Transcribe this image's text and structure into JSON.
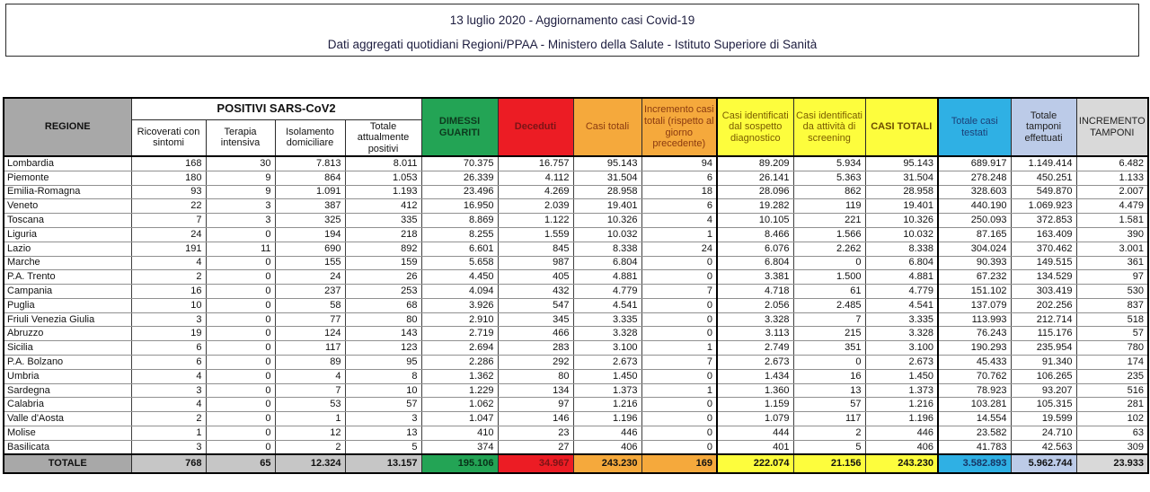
{
  "title": {
    "line1": "13 luglio 2020 - Aggiornamento casi Covid-19",
    "line2": "Dati aggregati quotidiani Regioni/PPAA - Ministero della Salute - Istituto Superiore di Sanità"
  },
  "table": {
    "header": {
      "group": "POSITIVI SARS-CoV2",
      "col_labels": [
        "REGIONE",
        "Ricoverati con sintomi",
        "Terapia intensiva",
        "Isolamento domiciliare",
        "Totale attualmente positivi",
        "DIMESSI GUARITI",
        "Deceduti",
        "Casi totali",
        "Incremento casi totali (rispetto al giorno precedente)",
        "Casi identificati dal sospetto diagnostico",
        "Casi identificati da attività di screening",
        "CASI TOTALI",
        "Totale casi testati",
        "Totale tamponi effettuati",
        "INCREMENTO TAMPONI"
      ]
    },
    "rows": [
      [
        "Lombardia",
        "168",
        "30",
        "7.813",
        "8.011",
        "70.375",
        "16.757",
        "95.143",
        "94",
        "89.209",
        "5.934",
        "95.143",
        "689.917",
        "1.149.414",
        "6.482"
      ],
      [
        "Piemonte",
        "180",
        "9",
        "864",
        "1.053",
        "26.339",
        "4.112",
        "31.504",
        "6",
        "26.141",
        "5.363",
        "31.504",
        "278.248",
        "450.251",
        "1.133"
      ],
      [
        "Emilia-Romagna",
        "93",
        "9",
        "1.091",
        "1.193",
        "23.496",
        "4.269",
        "28.958",
        "18",
        "28.096",
        "862",
        "28.958",
        "328.603",
        "549.870",
        "2.007"
      ],
      [
        "Veneto",
        "22",
        "3",
        "387",
        "412",
        "16.950",
        "2.039",
        "19.401",
        "6",
        "19.282",
        "119",
        "19.401",
        "440.190",
        "1.069.923",
        "4.479"
      ],
      [
        "Toscana",
        "7",
        "3",
        "325",
        "335",
        "8.869",
        "1.122",
        "10.326",
        "4",
        "10.105",
        "221",
        "10.326",
        "250.093",
        "372.853",
        "1.581"
      ],
      [
        "Liguria",
        "24",
        "0",
        "194",
        "218",
        "8.255",
        "1.559",
        "10.032",
        "1",
        "8.466",
        "1.566",
        "10.032",
        "87.165",
        "163.409",
        "390"
      ],
      [
        "Lazio",
        "191",
        "11",
        "690",
        "892",
        "6.601",
        "845",
        "8.338",
        "24",
        "6.076",
        "2.262",
        "8.338",
        "304.024",
        "370.462",
        "3.001"
      ],
      [
        "Marche",
        "4",
        "0",
        "155",
        "159",
        "5.658",
        "987",
        "6.804",
        "0",
        "6.804",
        "0",
        "6.804",
        "90.393",
        "149.515",
        "361"
      ],
      [
        "P.A. Trento",
        "2",
        "0",
        "24",
        "26",
        "4.450",
        "405",
        "4.881",
        "0",
        "3.381",
        "1.500",
        "4.881",
        "67.232",
        "134.529",
        "97"
      ],
      [
        "Campania",
        "16",
        "0",
        "237",
        "253",
        "4.094",
        "432",
        "4.779",
        "7",
        "4.718",
        "61",
        "4.779",
        "151.102",
        "303.419",
        "530"
      ],
      [
        "Puglia",
        "10",
        "0",
        "58",
        "68",
        "3.926",
        "547",
        "4.541",
        "0",
        "2.056",
        "2.485",
        "4.541",
        "137.079",
        "202.256",
        "837"
      ],
      [
        "Friuli Venezia Giulia",
        "3",
        "0",
        "77",
        "80",
        "2.910",
        "345",
        "3.335",
        "0",
        "3.328",
        "7",
        "3.335",
        "113.993",
        "212.714",
        "518"
      ],
      [
        "Abruzzo",
        "19",
        "0",
        "124",
        "143",
        "2.719",
        "466",
        "3.328",
        "0",
        "3.113",
        "215",
        "3.328",
        "76.243",
        "115.176",
        "57"
      ],
      [
        "Sicilia",
        "6",
        "0",
        "117",
        "123",
        "2.694",
        "283",
        "3.100",
        "1",
        "2.749",
        "351",
        "3.100",
        "190.293",
        "235.954",
        "780"
      ],
      [
        "P.A. Bolzano",
        "6",
        "0",
        "89",
        "95",
        "2.286",
        "292",
        "2.673",
        "7",
        "2.673",
        "0",
        "2.673",
        "45.433",
        "91.340",
        "174"
      ],
      [
        "Umbria",
        "4",
        "0",
        "4",
        "8",
        "1.362",
        "80",
        "1.450",
        "0",
        "1.434",
        "16",
        "1.450",
        "70.762",
        "106.265",
        "235"
      ],
      [
        "Sardegna",
        "3",
        "0",
        "7",
        "10",
        "1.229",
        "134",
        "1.373",
        "1",
        "1.360",
        "13",
        "1.373",
        "78.923",
        "93.207",
        "516"
      ],
      [
        "Calabria",
        "4",
        "0",
        "53",
        "57",
        "1.062",
        "97",
        "1.216",
        "0",
        "1.159",
        "57",
        "1.216",
        "103.281",
        "105.315",
        "281"
      ],
      [
        "Valle d'Aosta",
        "2",
        "0",
        "1",
        "3",
        "1.047",
        "146",
        "1.196",
        "0",
        "1.079",
        "117",
        "1.196",
        "14.554",
        "19.599",
        "102"
      ],
      [
        "Molise",
        "1",
        "0",
        "12",
        "13",
        "410",
        "23",
        "446",
        "0",
        "444",
        "2",
        "446",
        "23.582",
        "24.710",
        "63"
      ],
      [
        "Basilicata",
        "3",
        "0",
        "2",
        "5",
        "374",
        "27",
        "406",
        "0",
        "401",
        "5",
        "406",
        "41.783",
        "42.563",
        "309"
      ]
    ],
    "totale": [
      "TOTALE",
      "768",
      "65",
      "12.324",
      "13.157",
      "195.106",
      "34.967",
      "243.230",
      "169",
      "222.074",
      "21.156",
      "243.230",
      "3.582.893",
      "5.962.744",
      "23.933"
    ]
  },
  "colors": {
    "green": "#23a455",
    "red": "#ec1c24",
    "orange": "#f5a93c",
    "yellow": "#fdfd3d",
    "cyan": "#2fb0e4",
    "light_blue": "#bccbe8",
    "header_gray": "#a8a8a8",
    "totals_gray": "#c6c6c6",
    "increment_gray": "#d9d9d9"
  }
}
